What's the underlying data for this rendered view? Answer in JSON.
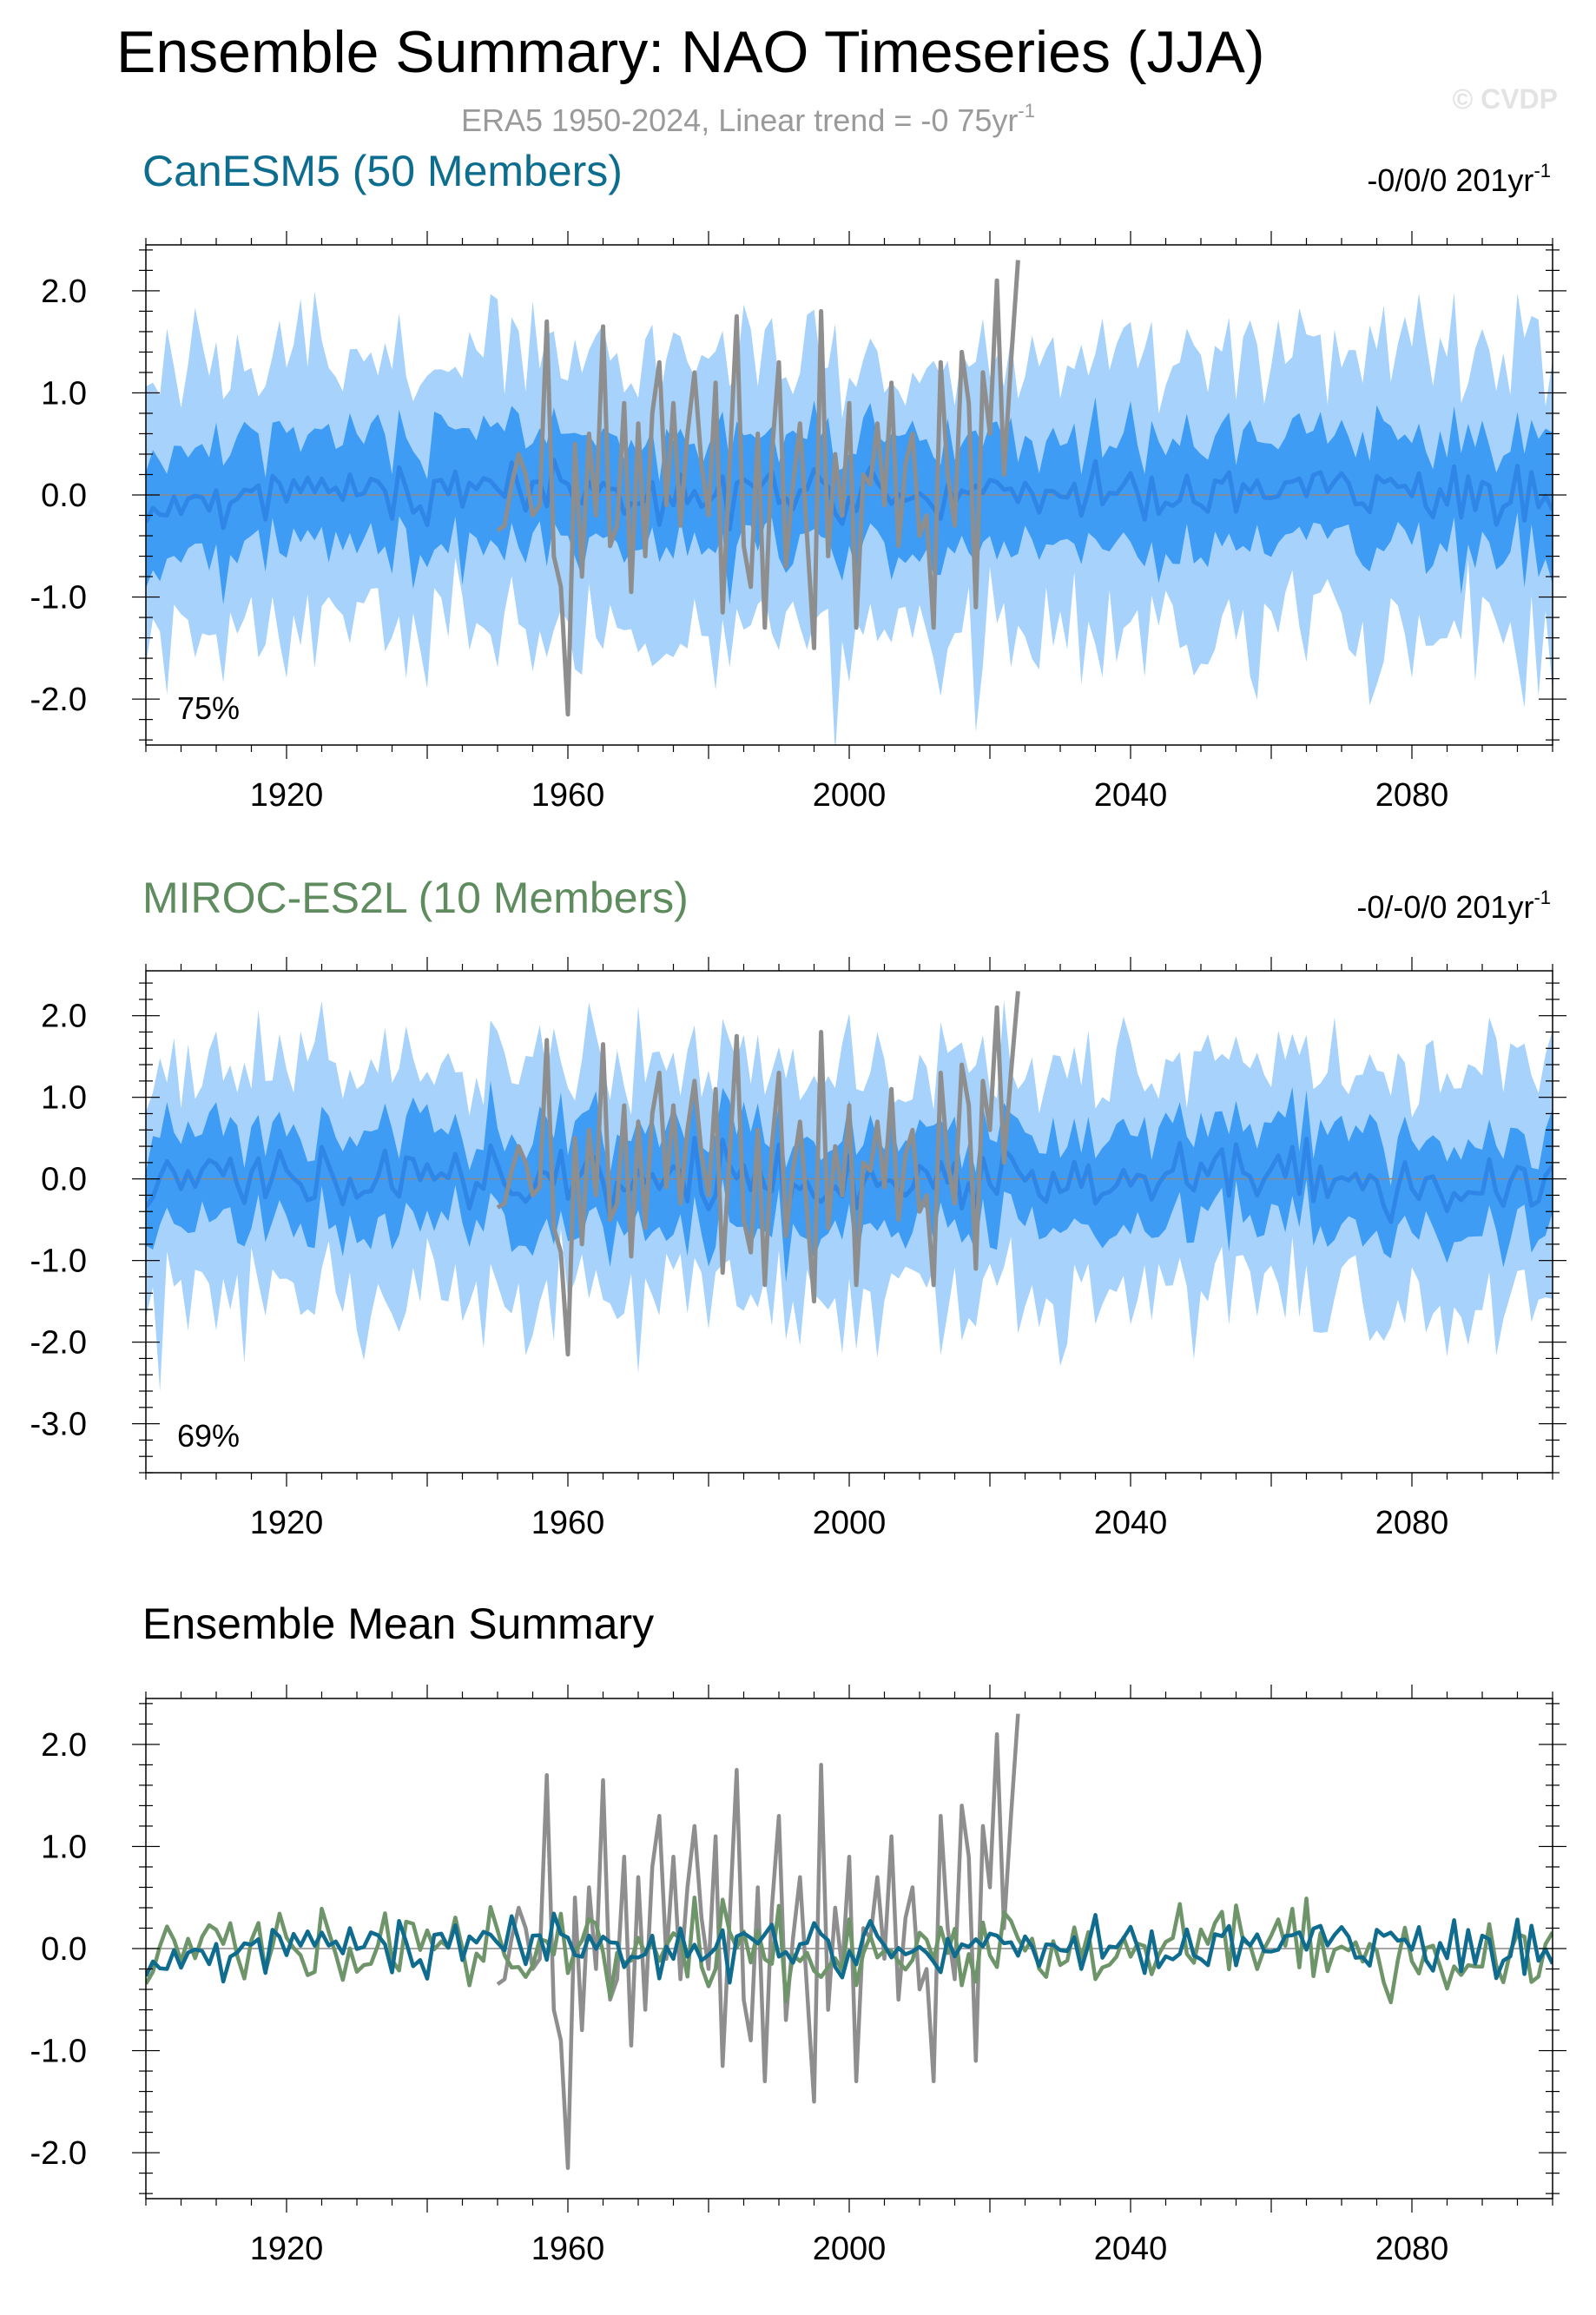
{
  "figure": {
    "title": "Ensemble Summary: NAO Timeseries (JJA)",
    "subtitle_main": "ERA5 1950-2024, Linear trend = -0 75yr",
    "subtitle_sup": "-1",
    "watermark": "© CVDP"
  },
  "colors": {
    "outer_band": "#a6d2fb",
    "inner_band": "#3e9cf4",
    "ens_mean_line": "#2f86e6",
    "obs_line": "#8e8e8e",
    "canesm_title": "#0d6d8f",
    "miroc_title": "#5e8c5e",
    "canesm_mean": "#0f6c8e",
    "miroc_mean": "#6e9569"
  },
  "panels": [
    {
      "id": "canesm5",
      "title": "CanESM5 (50 Members)",
      "trend_text": "-0/0/0 201yr",
      "trend_sup": "-1",
      "pct_label": "75%"
    },
    {
      "id": "miroc",
      "title": "MIROC-ES2L (10 Members)",
      "trend_text": "-0/-0/0 201yr",
      "trend_sup": "-1",
      "pct_label": "69%"
    },
    {
      "id": "summary",
      "title": "Ensemble Mean Summary"
    }
  ],
  "chart_data": [
    {
      "type": "area",
      "title": "CanESM5 (50 Members)",
      "x_range": [
        1900,
        2100
      ],
      "ylim": [
        -2.45,
        2.45
      ],
      "xticks": [
        1920,
        1960,
        2000,
        2040,
        2080
      ],
      "yticks": [
        2.0,
        1.0,
        0.0,
        -1.0,
        -2.0
      ],
      "ytick_labels": [
        "2.0",
        "1.0",
        "0.0",
        "-1.0",
        "-2.0"
      ],
      "band_outer_width": 1.35,
      "band_inner_width": 0.55,
      "mean_amplitude": 0.15,
      "seed": 11,
      "percent_label": "75%"
    },
    {
      "type": "area",
      "title": "MIROC-ES2L (10 Members)",
      "x_range": [
        1900,
        2100
      ],
      "ylim": [
        -3.6,
        2.55
      ],
      "xticks": [
        1920,
        1960,
        2000,
        2040,
        2080
      ],
      "yticks": [
        2.0,
        1.0,
        0.0,
        -1.0,
        -2.0,
        -3.0
      ],
      "ytick_labels": [
        "2.0",
        "1.0",
        "0.0",
        "-1.0",
        "-2.0",
        "-3.0"
      ],
      "band_outer_width": 1.4,
      "band_inner_width": 0.6,
      "mean_amplitude": 0.22,
      "seed": 37,
      "percent_label": "69%"
    },
    {
      "type": "line",
      "title": "Ensemble Mean Summary",
      "x_range": [
        1900,
        2100
      ],
      "ylim": [
        -2.45,
        2.45
      ],
      "xticks": [
        1920,
        1960,
        2000,
        2040,
        2080
      ],
      "yticks": [
        2.0,
        1.0,
        0.0,
        -1.0,
        -2.0
      ],
      "ytick_labels": [
        "2.0",
        "1.0",
        "0.0",
        "-1.0",
        "-2.0"
      ],
      "series": [
        {
          "color_key": "canesm_mean",
          "source": "canesm5_mean"
        },
        {
          "color_key": "miroc_mean",
          "source": "miroc_mean"
        }
      ]
    }
  ],
  "obs_series": {
    "start_year": 1950,
    "values": [
      -0.35,
      -0.3,
      0.1,
      0.4,
      0.2,
      -0.2,
      -0.1,
      1.7,
      -0.6,
      -0.9,
      -2.15,
      0.5,
      -0.8,
      0.6,
      -0.2,
      1.65,
      -0.5,
      -0.3,
      0.9,
      -0.95,
      0.7,
      -0.6,
      0.8,
      1.3,
      -0.1,
      0.9,
      -0.3,
      0.6,
      1.2,
      0.3,
      -0.2,
      1.1,
      -1.15,
      0.3,
      1.75,
      -0.5,
      -0.9,
      0.6,
      -1.3,
      0.4,
      1.3,
      -0.7,
      0.1,
      0.7,
      -0.4,
      -1.5,
      1.8,
      -0.6,
      0.4,
      -0.2,
      0.9,
      -1.3,
      0.2,
      0.1,
      0.7,
      -0.1,
      1.1,
      -0.5,
      0.3,
      0.6,
      -0.4,
      -0.2,
      -1.3,
      1.3,
      0.2,
      -0.3,
      1.4,
      0.9,
      -1.1,
      1.2,
      0.6,
      2.1,
      0.2,
      1.3,
      2.3
    ]
  }
}
